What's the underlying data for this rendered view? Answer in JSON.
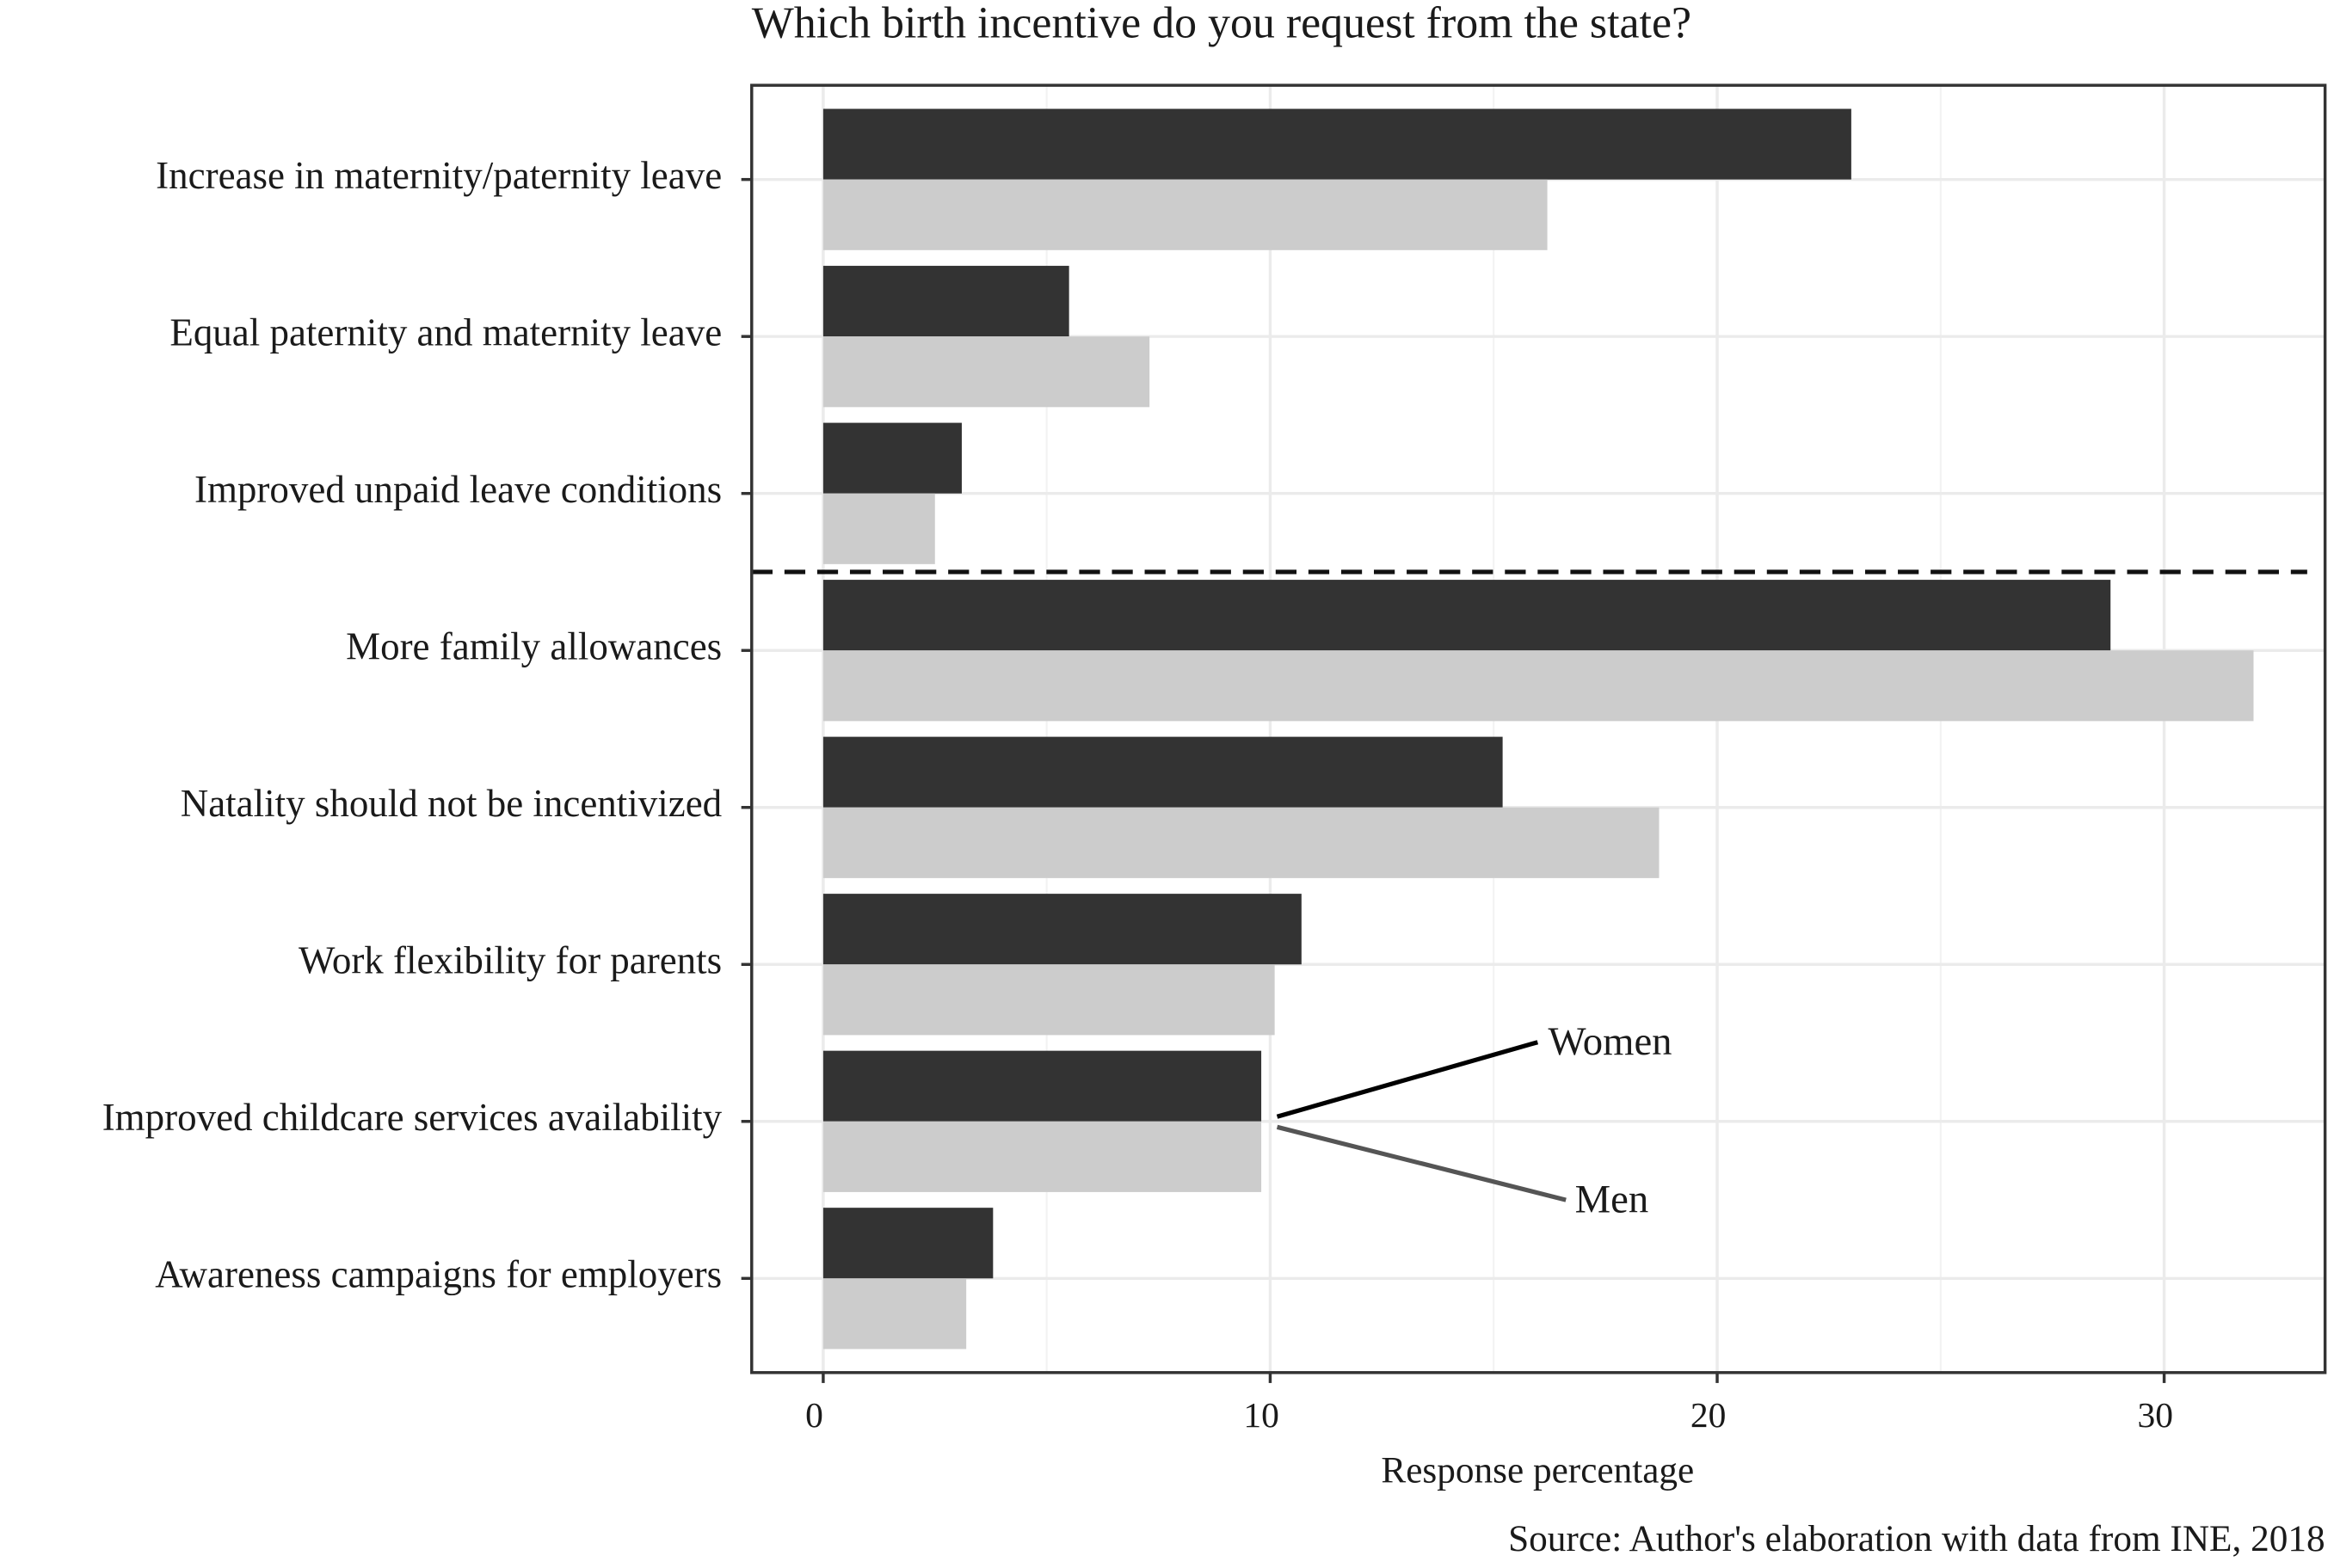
{
  "chart_data": {
    "type": "barh",
    "title": "Which birth incentive do you request from the state?",
    "x_label": "Response percentage",
    "caption": "Source: Author's elaboration with data from INE, 2018",
    "categories": [
      "Increase in maternity/paternity leave",
      "Equal paternity and maternity leave",
      "Improved unpaid leave conditions",
      "More family allowances",
      "Natality should not be incentivized",
      "Work flexibility for parents",
      "Improved childcare services availability",
      "Awareness campaigns for employers"
    ],
    "series": [
      {
        "name": "Women",
        "color": "#333333",
        "values": [
          23.0,
          5.5,
          3.1,
          28.8,
          15.2,
          10.7,
          9.8,
          3.8
        ]
      },
      {
        "name": "Men",
        "color": "#cccccc",
        "values": [
          16.2,
          7.3,
          2.5,
          32.0,
          18.7,
          10.1,
          9.8,
          3.2
        ]
      }
    ],
    "xlim": [
      -1.6,
      33.6
    ],
    "xticks": [
      0,
      10,
      20,
      30
    ],
    "grid": true
  }
}
